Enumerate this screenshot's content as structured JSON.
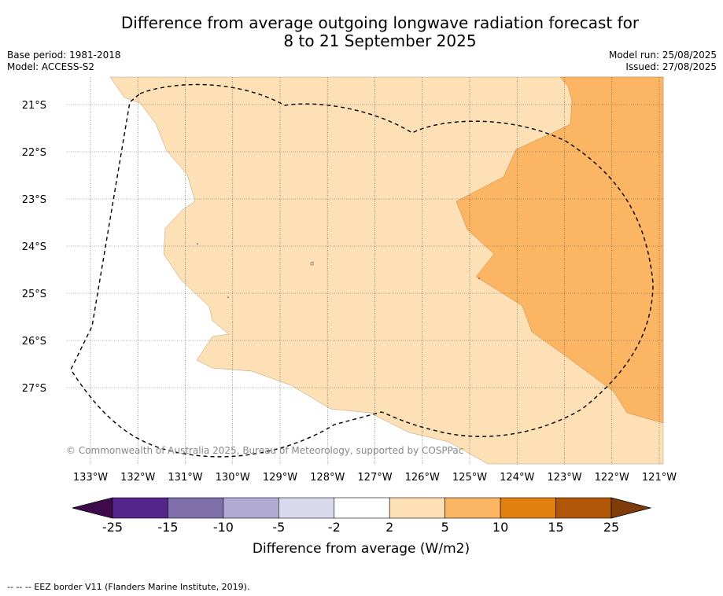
{
  "title": {
    "line1": "Difference from average outgoing longwave radiation forecast for",
    "line2": "8 to 21 September 2025"
  },
  "meta": {
    "base_period": "Base period: 1981-2018",
    "model": "Model: ACCESS-S2",
    "model_run": "Model run: 25/08/2025",
    "issued": "Issued: 27/08/2025"
  },
  "map": {
    "lat_labels": [
      "21°S",
      "22°S",
      "23°S",
      "24°S",
      "25°S",
      "26°S",
      "27°S"
    ],
    "lon_labels": [
      "133°W",
      "132°W",
      "131°W",
      "130°W",
      "129°W",
      "128°W",
      "127°W",
      "126°W",
      "125°W",
      "124°W",
      "123°W",
      "122°W",
      "121°W"
    ],
    "copyright": "© Commonwealth of Australia 2025, Bureau of Meteorology, supported by COSPPac",
    "colors": {
      "land_bg": "#ffffff",
      "band_2_5": "#fde0b6",
      "band_5_10": "#fcb562"
    }
  },
  "colorbar": {
    "tick_labels": [
      "-25",
      "-15",
      "-10",
      "-5",
      "-2",
      "2",
      "5",
      "10",
      "15",
      "25"
    ],
    "label": "Difference from average (W/m2)",
    "colors": [
      "#3f0a4b",
      "#54258a",
      "#7f70ab",
      "#b1abd3",
      "#d8d9ec",
      "#ffffff",
      "#fde0b6",
      "#fcb562",
      "#e1800f",
      "#b05808",
      "#7f3b08"
    ]
  },
  "legend": {
    "eez_symbol": "--  --  --",
    "eez_text": "EEZ border V11 (Flanders Marine Institute, 2019)."
  }
}
